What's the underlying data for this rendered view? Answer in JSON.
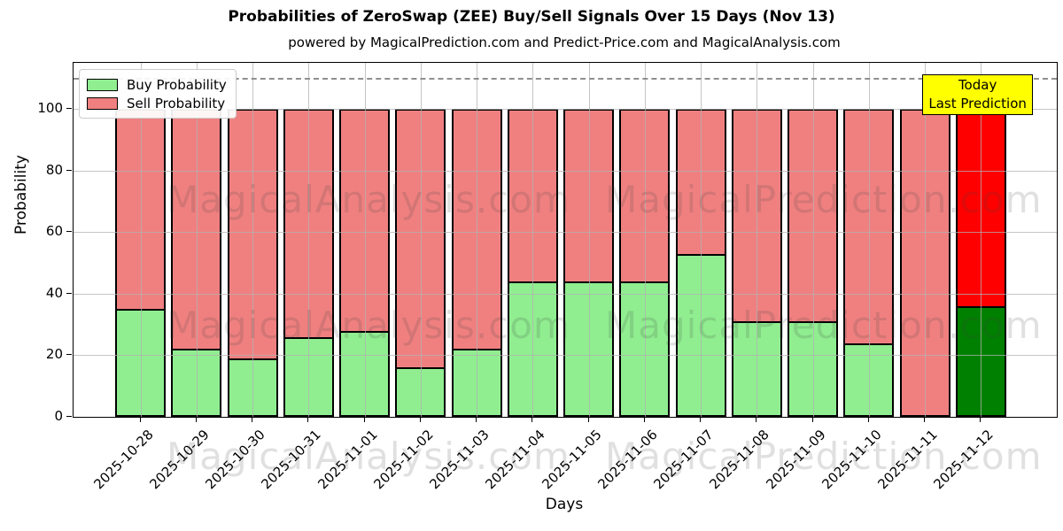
{
  "title": "Probabilities of ZeroSwap (ZEE) Buy/Sell Signals Over 15 Days (Nov 13)",
  "subtitle": "powered by MagicalPrediction.com and Predict-Price.com and MagicalAnalysis.com",
  "legend": {
    "buy_label": "Buy Probability",
    "sell_label": "Sell Probability"
  },
  "annotation": {
    "line1": "Today",
    "line2": "Last Prediction",
    "bg_color": "#ffff00"
  },
  "axes": {
    "xlabel": "Days",
    "ylabel": "Probability"
  },
  "colors": {
    "buy": "#90ee90",
    "sell": "#f08080",
    "today_buy": "#008000",
    "today_sell": "#ff0000",
    "today_edge": "#ffa500",
    "grid": "#b2b2b2",
    "dashed_guide": "#8f8f8f",
    "edge": "#000000"
  },
  "watermark": {
    "texts": [
      "MagicalAnalysis.com",
      "MagicalPrediction.com"
    ]
  },
  "chart_data": {
    "type": "bar",
    "stacked": true,
    "title": "Probabilities of ZeroSwap (ZEE) Buy/Sell Signals Over 15 Days (Nov 13)",
    "xlabel": "Days",
    "ylabel": "Probability",
    "ylim": [
      0,
      115
    ],
    "yticks": [
      0,
      20,
      40,
      60,
      80,
      100
    ],
    "dashed_guide_y": 110,
    "grid": true,
    "legend_position": "upper left",
    "categories": [
      "2025-10-28",
      "2025-10-29",
      "2025-10-30",
      "2025-10-31",
      "2025-11-01",
      "2025-11-02",
      "2025-11-03",
      "2025-11-04",
      "2025-11-05",
      "2025-11-06",
      "2025-11-07",
      "2025-11-08",
      "2025-11-09",
      "2025-11-10",
      "2025-11-11",
      "2025-11-12"
    ],
    "series": [
      {
        "name": "Buy Probability",
        "color": "#90ee90",
        "values": [
          35,
          22,
          19,
          26,
          28,
          16,
          22,
          44,
          44,
          44,
          53,
          31,
          31,
          24,
          0,
          36
        ]
      },
      {
        "name": "Sell Probability",
        "color": "#f08080",
        "values": [
          65,
          78,
          81,
          74,
          72,
          84,
          78,
          56,
          56,
          56,
          47,
          69,
          69,
          76,
          100,
          64
        ]
      }
    ],
    "today": {
      "category": "2025-11-12",
      "buy_color": "#008000",
      "sell_color": "#ff0000",
      "edge_color": "#ffa500",
      "label": [
        "Today",
        "Last Prediction"
      ]
    }
  }
}
